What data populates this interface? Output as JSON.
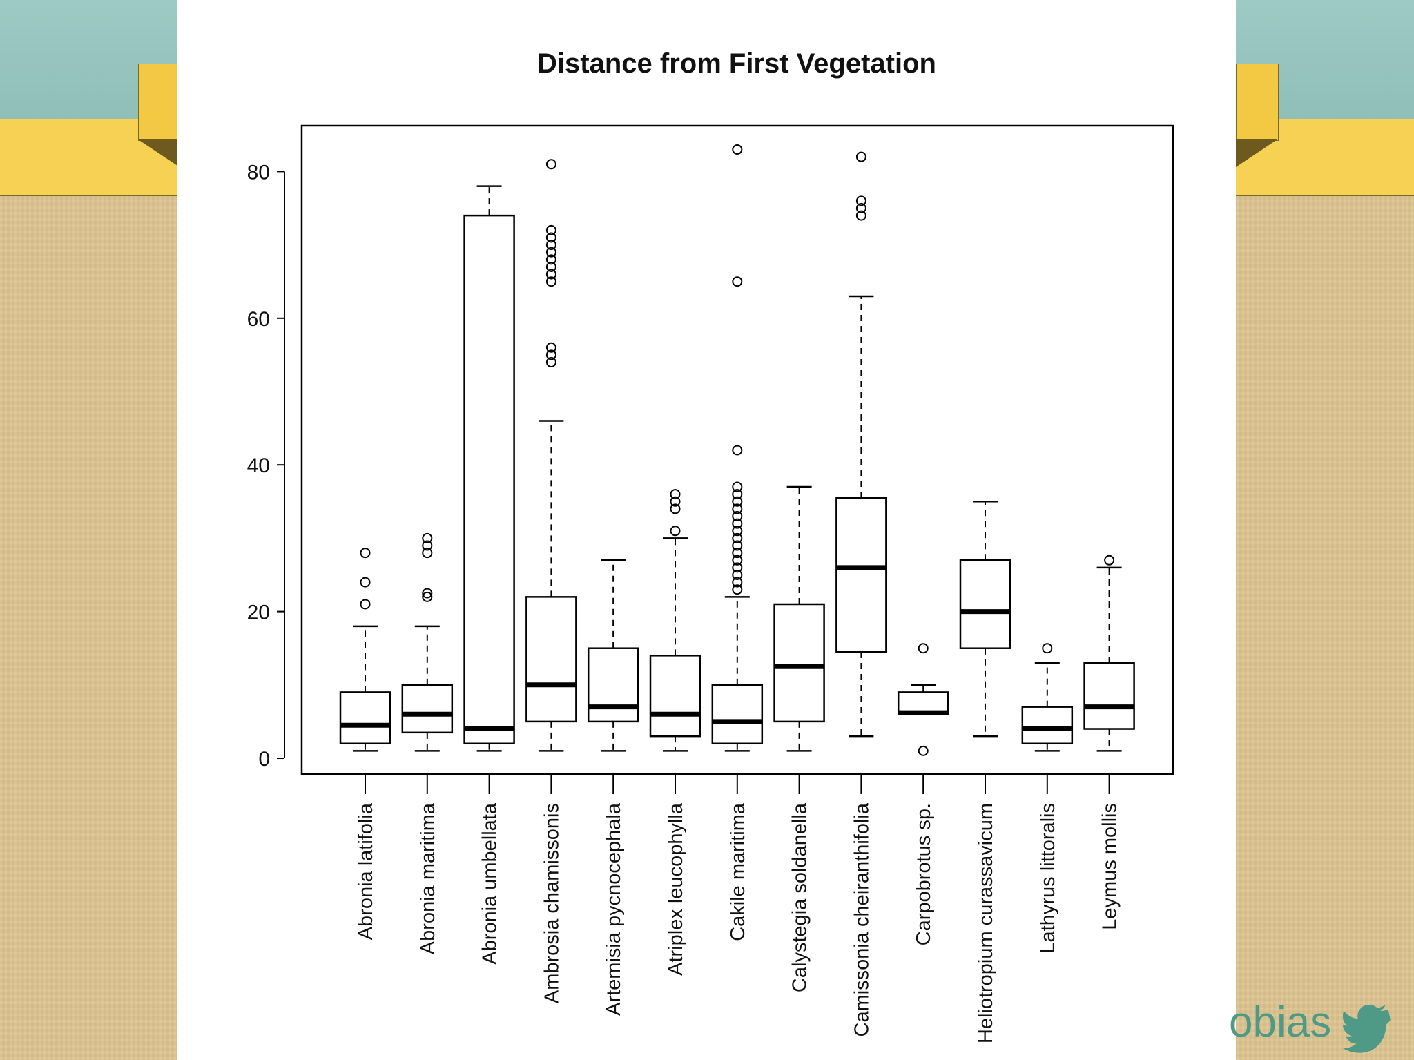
{
  "slide": {
    "twitter_handle": "obias",
    "twitter_icon": "twitter-bird-icon",
    "colors": {
      "sky": "#9ecac4",
      "ribbon": "#f7d154",
      "parchment": "#dcc48f",
      "handle": "#4f9a86"
    }
  },
  "chart_data": {
    "type": "boxplot",
    "title": "Distance from First Vegetation",
    "xlabel": "",
    "ylabel": "",
    "ylim": [
      0,
      86
    ],
    "yticks": [
      0,
      20,
      40,
      60,
      80
    ],
    "grid": false,
    "categories": [
      "Abronia latifolia",
      "Abronia maritima",
      "Abronia umbellata",
      "Ambrosia chamissonis",
      "Artemisia pycnocephala",
      "Atriplex leucophylla",
      "Cakile maritima",
      "Calystegia soldanella",
      "Camissonia cheiranthifolia",
      "Carpobrotus sp.",
      "Heliotropium curassavicum",
      "Lathyrus littoralis",
      "Leymus mollis"
    ],
    "boxes": [
      {
        "min": 1,
        "q1": 2,
        "median": 4.5,
        "q3": 9,
        "max": 18,
        "outliers": [
          21,
          24,
          28
        ]
      },
      {
        "min": 1,
        "q1": 3.5,
        "median": 6,
        "q3": 10,
        "max": 18,
        "outliers": [
          22,
          22.5,
          28,
          29,
          30
        ]
      },
      {
        "min": 1,
        "q1": 2,
        "median": 4,
        "q3": 74,
        "max": 78,
        "outliers": []
      },
      {
        "min": 1,
        "q1": 5,
        "median": 10,
        "q3": 22,
        "max": 46,
        "outliers": [
          54,
          55,
          56,
          65,
          66,
          67,
          68,
          69,
          70,
          71,
          72,
          81
        ]
      },
      {
        "min": 1,
        "q1": 5,
        "median": 7,
        "q3": 15,
        "max": 27,
        "outliers": []
      },
      {
        "min": 1,
        "q1": 3,
        "median": 6,
        "q3": 14,
        "max": 30,
        "outliers": [
          31,
          34,
          35,
          36
        ]
      },
      {
        "min": 1,
        "q1": 2,
        "median": 5,
        "q3": 10,
        "max": 22,
        "outliers": [
          23,
          24,
          25,
          26,
          27,
          28,
          29,
          30,
          31,
          32,
          33,
          34,
          35,
          36,
          37,
          42,
          65,
          83
        ]
      },
      {
        "min": 1,
        "q1": 5,
        "median": 12.5,
        "q3": 21,
        "max": 37,
        "outliers": []
      },
      {
        "min": 3,
        "q1": 14.5,
        "median": 26,
        "q3": 35.5,
        "max": 63,
        "outliers": [
          74,
          75,
          76,
          82
        ]
      },
      {
        "min": 6,
        "q1": 6,
        "median": 6.2,
        "q3": 9,
        "max": 10,
        "outliers": [
          1,
          15
        ]
      },
      {
        "min": 3,
        "q1": 15,
        "median": 20,
        "q3": 27,
        "max": 35,
        "outliers": []
      },
      {
        "min": 1,
        "q1": 2,
        "median": 4,
        "q3": 7,
        "max": 13,
        "outliers": [
          15
        ]
      },
      {
        "min": 1,
        "q1": 4,
        "median": 7,
        "q3": 13,
        "max": 26,
        "outliers": [
          27
        ]
      }
    ]
  }
}
